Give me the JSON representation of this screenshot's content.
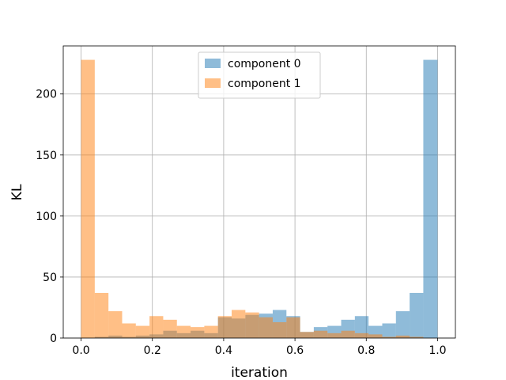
{
  "chart_data": {
    "type": "bar",
    "histogram": true,
    "bin_width": 0.0384,
    "bin_edges": [
      0.0,
      0.0384,
      0.0768,
      0.1152,
      0.1536,
      0.192,
      0.2304,
      0.2688,
      0.3072,
      0.3456,
      0.384,
      0.4224,
      0.4608,
      0.4992,
      0.5376,
      0.576,
      0.6144,
      0.6528,
      0.6912,
      0.7296,
      0.768,
      0.8064,
      0.8448,
      0.8832,
      0.9216,
      0.96,
      1.0
    ],
    "series": [
      {
        "name": "component 0",
        "color": "#1f77b4",
        "alpha": 0.5,
        "values": [
          0,
          1,
          2,
          1,
          2,
          3,
          6,
          4,
          6,
          4,
          17,
          16,
          19,
          20,
          23,
          18,
          5,
          9,
          10,
          15,
          18,
          10,
          12,
          22,
          37,
          228
        ]
      },
      {
        "name": "component 1",
        "color": "#ff7f0e",
        "alpha": 0.5,
        "values": [
          228,
          37,
          22,
          12,
          10,
          18,
          15,
          10,
          9,
          10,
          18,
          23,
          21,
          17,
          13,
          17,
          5,
          6,
          4,
          6,
          4,
          3,
          1,
          2,
          1,
          0
        ]
      }
    ],
    "xlabel": "iteration",
    "ylabel": "KL",
    "xlim": [
      -0.05,
      1.05
    ],
    "ylim": [
      0,
      239.4
    ],
    "xticks": [
      0.0,
      0.2,
      0.4,
      0.6,
      0.8,
      1.0
    ],
    "xtick_labels": [
      "0.0",
      "0.2",
      "0.4",
      "0.6",
      "0.8",
      "1.0"
    ],
    "yticks": [
      0,
      50,
      100,
      150,
      200
    ],
    "ytick_labels": [
      "0",
      "50",
      "100",
      "150",
      "200"
    ],
    "grid": true,
    "legend_position": "top-center"
  }
}
